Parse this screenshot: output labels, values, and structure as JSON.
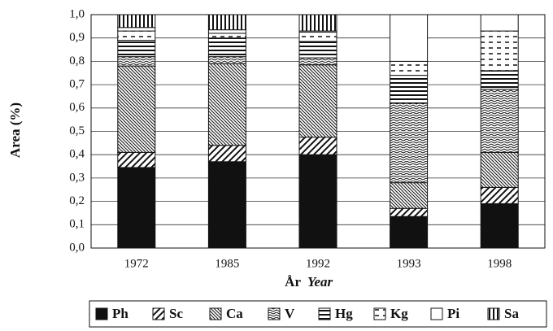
{
  "chart_data": {
    "type": "stacked-bar",
    "y_label": "Area (%)",
    "x_label": "År",
    "x_label_en": "Year",
    "categories": [
      "1972",
      "1985",
      "1992",
      "1993",
      "1998"
    ],
    "series": [
      {
        "name": "Ph",
        "color": "#111111",
        "values": [
          0.345,
          0.37,
          0.4,
          0.135,
          0.19
        ]
      },
      {
        "name": "Sc",
        "color": "#111111",
        "values": [
          0.065,
          0.07,
          0.075,
          0.035,
          0.07
        ]
      },
      {
        "name": "Ca",
        "color": "#111111",
        "values": [
          0.37,
          0.35,
          0.31,
          0.11,
          0.15
        ]
      },
      {
        "name": "V",
        "color": "#111111",
        "values": [
          0.04,
          0.03,
          0.03,
          0.34,
          0.27
        ]
      },
      {
        "name": "Hg",
        "color": "#111111",
        "values": [
          0.07,
          0.08,
          0.07,
          0.12,
          0.08
        ]
      },
      {
        "name": "Kg",
        "color": "#111111",
        "values": [
          0.04,
          0.02,
          0.04,
          0.06,
          0.17
        ]
      },
      {
        "name": "Pi",
        "color": "#111111",
        "values": [
          0.015,
          0.015,
          0.005,
          0.2,
          0.07
        ]
      },
      {
        "name": "Sa",
        "color": "#111111",
        "values": [
          0.055,
          0.065,
          0.07,
          0,
          0
        ]
      }
    ],
    "ylim": [
      0,
      1
    ],
    "yticks": [
      {
        "value": 0,
        "label": "0,0"
      },
      {
        "value": 0.1,
        "label": "0,1"
      },
      {
        "value": 0.2,
        "label": "0,2"
      },
      {
        "value": 0.3,
        "label": "0,3"
      },
      {
        "value": 0.4,
        "label": "0,4"
      },
      {
        "value": 0.5,
        "label": "0,5"
      },
      {
        "value": 0.6,
        "label": "0,6"
      },
      {
        "value": 0.7,
        "label": "0,7"
      },
      {
        "value": 0.8,
        "label": "0,8"
      },
      {
        "value": 0.9,
        "label": "0,9"
      },
      {
        "value": 1,
        "label": "1,0"
      }
    ],
    "grid": true,
    "legend": "bottom"
  }
}
